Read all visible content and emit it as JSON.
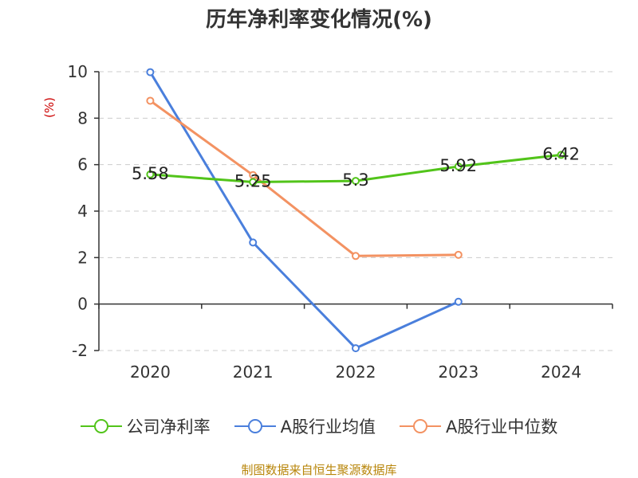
{
  "chart_data": {
    "type": "line",
    "title": "历年净利率变化情况(%)",
    "ylabel": "(%)",
    "xlabel": "",
    "x": [
      "2020",
      "2021",
      "2022",
      "2023",
      "2024"
    ],
    "ylim": [
      -2,
      10
    ],
    "yticks": [
      -2,
      0,
      2,
      4,
      6,
      8,
      10
    ],
    "grid": "horizontal-dashed",
    "legend_position": "bottom",
    "series": [
      {
        "name": "公司净利率",
        "color": "#52c41a",
        "values": [
          5.58,
          5.25,
          5.3,
          5.92,
          6.42
        ],
        "labels": [
          "5.58",
          "5.25",
          "5.3",
          "5.92",
          "6.42"
        ]
      },
      {
        "name": "A股行业均值",
        "color": "#4a7fdc",
        "values": [
          9.98,
          2.65,
          -1.9,
          0.1,
          null
        ]
      },
      {
        "name": "A股行业中位数",
        "color": "#f39262",
        "values": [
          8.75,
          5.55,
          2.07,
          2.12,
          null
        ]
      }
    ]
  },
  "source": "制图数据来自恒生聚源数据库"
}
